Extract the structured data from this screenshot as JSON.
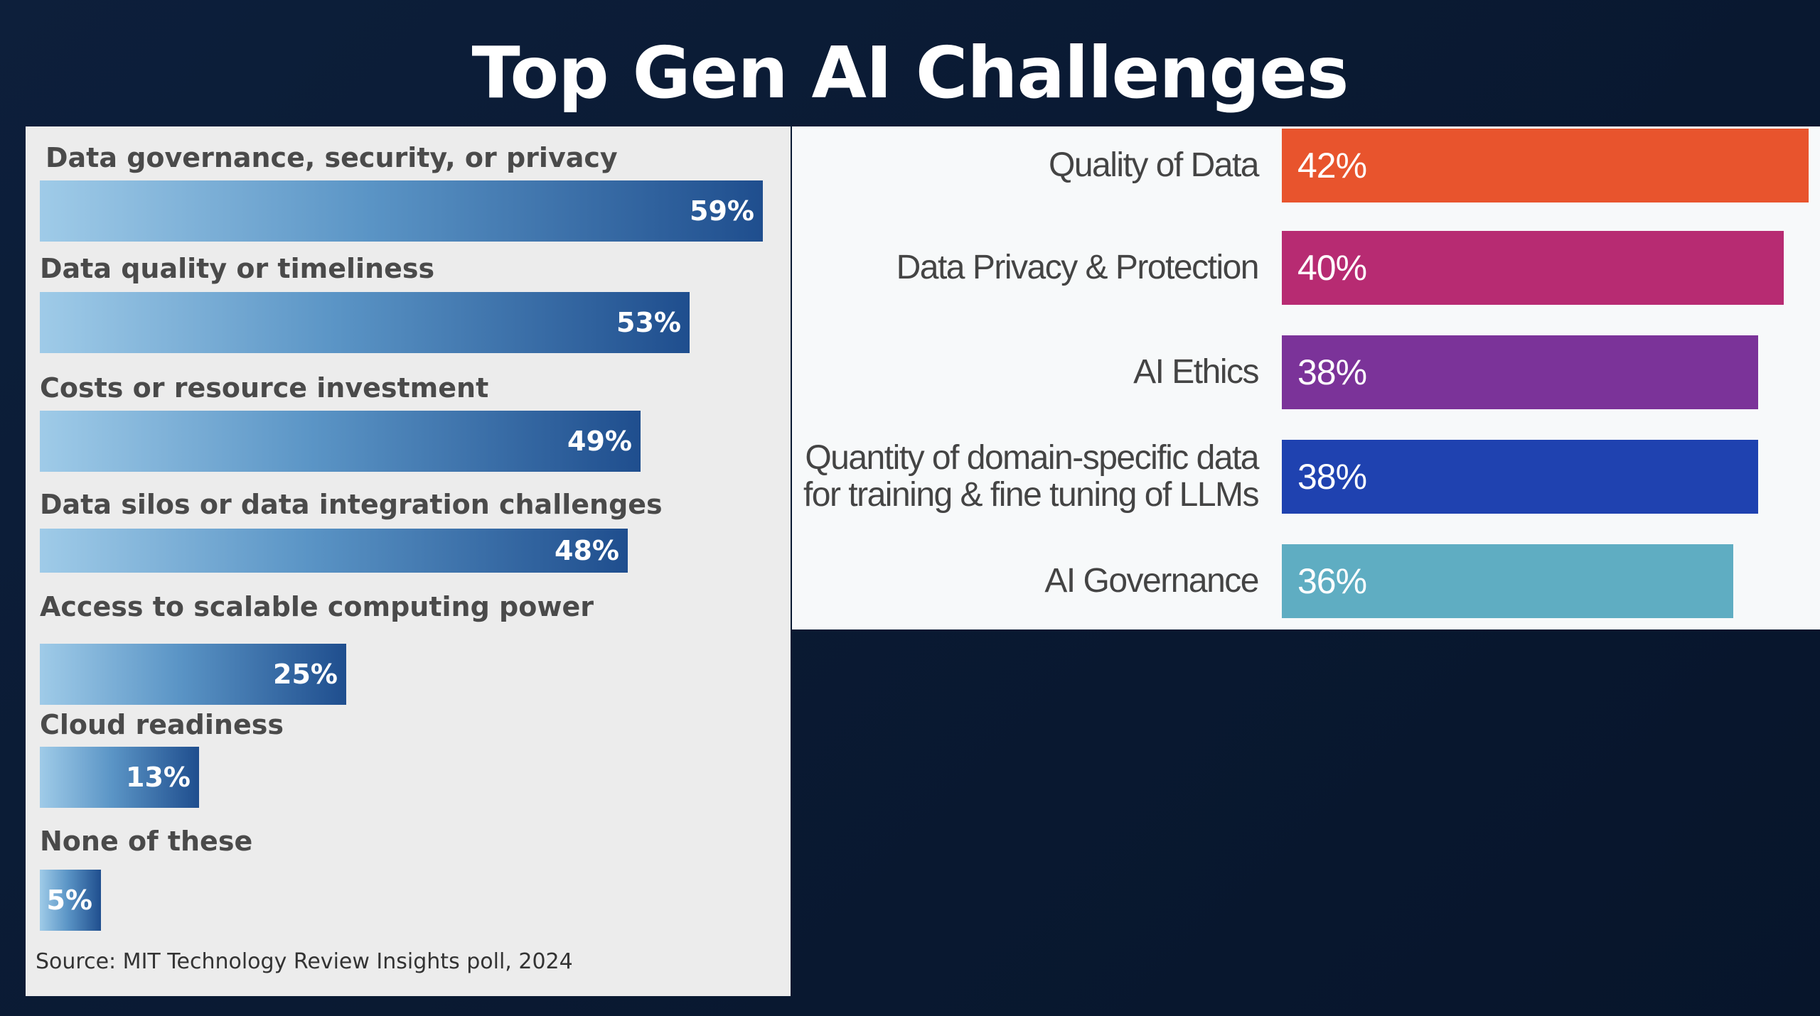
{
  "slide": {
    "title": "Top Gen AI Challenges"
  },
  "chart_data": [
    {
      "type": "bar",
      "orientation": "horizontal",
      "categories": [
        "Data governance, security, or privacy",
        "Data quality or timeliness",
        "Costs or resource investment",
        "Data silos or data integration challenges",
        "Access to scalable computing power",
        "Cloud readiness",
        "None of these"
      ],
      "values": [
        59,
        53,
        49,
        48,
        25,
        13,
        5
      ],
      "value_labels": [
        "59%",
        "53%",
        "49%",
        "48%",
        "25%",
        "13%",
        "5%"
      ],
      "source": "Source: MIT Technology Review Insights poll, 2024",
      "xlim": [
        0,
        59
      ],
      "grid": false,
      "colors": {
        "bar_start": "#9fcbe8",
        "bar_end": "#1f4e8e"
      }
    },
    {
      "type": "bar",
      "orientation": "horizontal",
      "categories": [
        "Quality of Data",
        "Data Privacy & Protection",
        "AI Ethics",
        "Quantity of domain-specific data for training & fine tuning of LLMs",
        "AI Governance"
      ],
      "category_lines": [
        [
          "Quality of Data"
        ],
        [
          "Data Privacy & Protection"
        ],
        [
          "AI Ethics"
        ],
        [
          "Quantity of domain-specific data",
          "for training & fine tuning of LLMs"
        ],
        [
          "AI Governance"
        ]
      ],
      "values": [
        42,
        40,
        38,
        38,
        36
      ],
      "value_labels": [
        "42%",
        "40%",
        "38%",
        "38%",
        "36%"
      ],
      "colors": [
        "#e8542d",
        "#b72b72",
        "#7b3399",
        "#1f42b0",
        "#5fadc2"
      ],
      "xlim": [
        0,
        42
      ],
      "grid": false
    }
  ]
}
